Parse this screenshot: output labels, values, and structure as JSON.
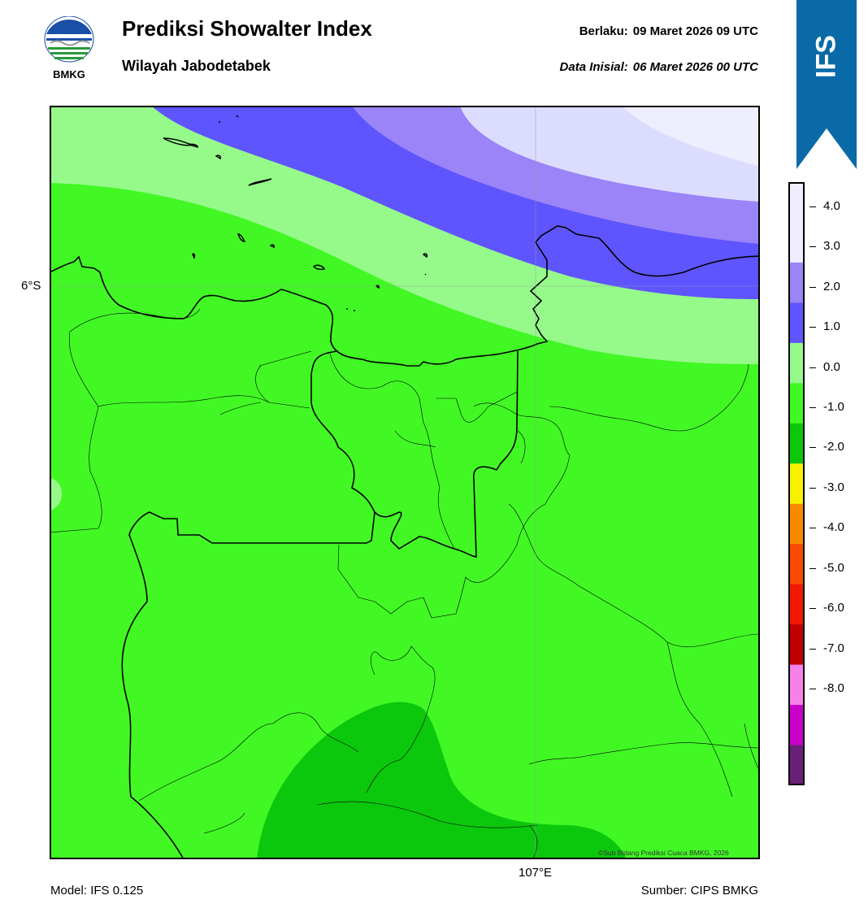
{
  "header": {
    "logo_text": "BMKG",
    "title": "Prediksi Showalter Index",
    "subtitle": "Wilayah Jabodetabek",
    "valid_label": "Berlaku:",
    "valid_value": "09 Maret 2026 09 UTC",
    "init_label": "Data Inisial:",
    "init_value": "06 Maret 2026 00 UTC"
  },
  "badge": {
    "label": "IFS",
    "color": "#0a6aa8"
  },
  "map": {
    "lat_label": "6°S",
    "lon_label": "107°E",
    "copyright": "©Sub Bidang Prediksi Cuaca BMKG, 2026"
  },
  "legend": {
    "levels": [
      {
        "value": "4.0",
        "color": "#eeeeff"
      },
      {
        "value": "3.0",
        "color": "#9a84f8"
      },
      {
        "value": "2.0",
        "color": "#5f55ff"
      },
      {
        "value": "1.0",
        "color": "#96fa8b"
      },
      {
        "value": "0.0",
        "color": "#41f824"
      },
      {
        "value": "-1.0",
        "color": "#0cc80d"
      },
      {
        "value": "-2.0",
        "color": "#f8f200"
      },
      {
        "value": "-3.0",
        "color": "#f88a00"
      },
      {
        "value": "-4.0",
        "color": "#f84a00"
      },
      {
        "value": "-5.0",
        "color": "#f01800"
      },
      {
        "value": "-6.0",
        "color": "#c00000"
      },
      {
        "value": "-7.0",
        "color": "#f880ea"
      },
      {
        "value": "-8.0",
        "color": "#c800c8"
      }
    ],
    "top_color": "#eeeeff",
    "bottom_color": "#6a1f78"
  },
  "footer": {
    "model": "Model: IFS 0.125",
    "source": "Sumber: CIPS BMKG"
  }
}
